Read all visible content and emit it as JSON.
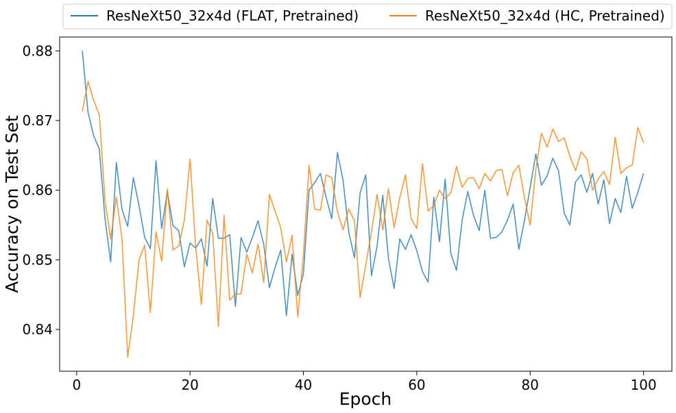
{
  "chart_data": {
    "type": "line",
    "xlabel": "Epoch",
    "ylabel": "Accuracy on Test Set",
    "xlim": [
      -3,
      105
    ],
    "ylim": [
      0.834,
      0.882
    ],
    "xticks": [
      0,
      20,
      40,
      60,
      80,
      100
    ],
    "xtick_labels": [
      "0",
      "20",
      "40",
      "60",
      "80",
      "100"
    ],
    "yticks": [
      0.84,
      0.85,
      0.86,
      0.87,
      0.88
    ],
    "ytick_labels": [
      "0.84",
      "0.85",
      "0.86",
      "0.87",
      "0.88"
    ],
    "grid": false,
    "legend_position": "top, outside plot",
    "series": [
      {
        "name": "ResNeXt50_32x4d (FLAT, Pretrained)",
        "color": "#1f77b4",
        "x": [
          1,
          2,
          3,
          4,
          5,
          6,
          7,
          8,
          9,
          10,
          11,
          12,
          13,
          14,
          15,
          16,
          17,
          18,
          19,
          20,
          21,
          22,
          23,
          24,
          25,
          26,
          27,
          28,
          29,
          30,
          31,
          32,
          33,
          34,
          35,
          36,
          37,
          38,
          39,
          40,
          41,
          42,
          43,
          44,
          45,
          46,
          47,
          48,
          49,
          50,
          51,
          52,
          53,
          54,
          55,
          56,
          57,
          58,
          59,
          60,
          61,
          62,
          63,
          64,
          65,
          66,
          67,
          68,
          69,
          70,
          71,
          72,
          73,
          74,
          75,
          76,
          77,
          78,
          79,
          80,
          81,
          82,
          83,
          84,
          85,
          86,
          87,
          88,
          89,
          90,
          91,
          92,
          93,
          94,
          95,
          96,
          97,
          98,
          99,
          100
        ],
        "values": [
          0.88,
          0.8712,
          0.8678,
          0.8659,
          0.8559,
          0.8497,
          0.864,
          0.8572,
          0.8548,
          0.8618,
          0.8578,
          0.8532,
          0.8516,
          0.8642,
          0.8545,
          0.8598,
          0.8549,
          0.8542,
          0.849,
          0.8524,
          0.8517,
          0.853,
          0.8491,
          0.8588,
          0.8531,
          0.8531,
          0.8536,
          0.8433,
          0.8532,
          0.8511,
          0.8532,
          0.8556,
          0.8522,
          0.846,
          0.8489,
          0.8514,
          0.842,
          0.8508,
          0.8449,
          0.848,
          0.86,
          0.8611,
          0.8624,
          0.859,
          0.8559,
          0.8654,
          0.8614,
          0.854,
          0.8503,
          0.8596,
          0.8622,
          0.8477,
          0.852,
          0.8593,
          0.8502,
          0.8459,
          0.853,
          0.8515,
          0.8536,
          0.8513,
          0.8483,
          0.8468,
          0.859,
          0.8526,
          0.8616,
          0.8509,
          0.8485,
          0.8557,
          0.8598,
          0.8564,
          0.8542,
          0.86,
          0.8531,
          0.8532,
          0.854,
          0.8557,
          0.858,
          0.8515,
          0.8557,
          0.8604,
          0.8652,
          0.8607,
          0.8621,
          0.8646,
          0.8628,
          0.8567,
          0.855,
          0.8612,
          0.8622,
          0.8597,
          0.8624,
          0.858,
          0.8615,
          0.8552,
          0.8588,
          0.8568,
          0.862,
          0.8574,
          0.8597,
          0.8624
        ]
      },
      {
        "name": "ResNeXt50_32x4d (HC, Pretrained)",
        "color": "#ff7f0e",
        "x": [
          1,
          2,
          3,
          4,
          5,
          6,
          7,
          8,
          9,
          10,
          11,
          12,
          13,
          14,
          15,
          16,
          17,
          18,
          19,
          20,
          21,
          22,
          23,
          24,
          25,
          26,
          27,
          28,
          29,
          30,
          31,
          32,
          33,
          34,
          35,
          36,
          37,
          38,
          39,
          40,
          41,
          42,
          43,
          44,
          45,
          46,
          47,
          48,
          49,
          50,
          51,
          52,
          53,
          54,
          55,
          56,
          57,
          58,
          59,
          60,
          61,
          62,
          63,
          64,
          65,
          66,
          67,
          68,
          69,
          70,
          71,
          72,
          73,
          74,
          75,
          76,
          77,
          78,
          79,
          80,
          81,
          82,
          83,
          84,
          85,
          86,
          87,
          88,
          89,
          90,
          91,
          92,
          93,
          94,
          95,
          96,
          97,
          98,
          99,
          100
        ],
        "values": [
          0.8713,
          0.8756,
          0.8729,
          0.8708,
          0.8585,
          0.853,
          0.859,
          0.853,
          0.836,
          0.842,
          0.85,
          0.8521,
          0.8424,
          0.854,
          0.8498,
          0.8602,
          0.8514,
          0.852,
          0.8557,
          0.8645,
          0.8518,
          0.8436,
          0.8557,
          0.8538,
          0.8404,
          0.8564,
          0.8442,
          0.8451,
          0.8451,
          0.8508,
          0.8481,
          0.8523,
          0.8467,
          0.8594,
          0.857,
          0.8546,
          0.8497,
          0.8535,
          0.8418,
          0.8507,
          0.8636,
          0.8573,
          0.8571,
          0.8622,
          0.8618,
          0.8569,
          0.8543,
          0.8573,
          0.8556,
          0.8446,
          0.8493,
          0.854,
          0.8594,
          0.8543,
          0.8602,
          0.8546,
          0.8589,
          0.8622,
          0.8559,
          0.8545,
          0.8638,
          0.857,
          0.8578,
          0.86,
          0.8588,
          0.8596,
          0.8634,
          0.8604,
          0.8617,
          0.8618,
          0.8602,
          0.8624,
          0.8613,
          0.8628,
          0.863,
          0.8592,
          0.8625,
          0.8636,
          0.8589,
          0.855,
          0.863,
          0.8682,
          0.8662,
          0.8688,
          0.867,
          0.8675,
          0.8649,
          0.8628,
          0.8655,
          0.8645,
          0.86,
          0.8616,
          0.8627,
          0.8608,
          0.8676,
          0.8624,
          0.8632,
          0.8636,
          0.869,
          0.8668
        ]
      }
    ]
  }
}
